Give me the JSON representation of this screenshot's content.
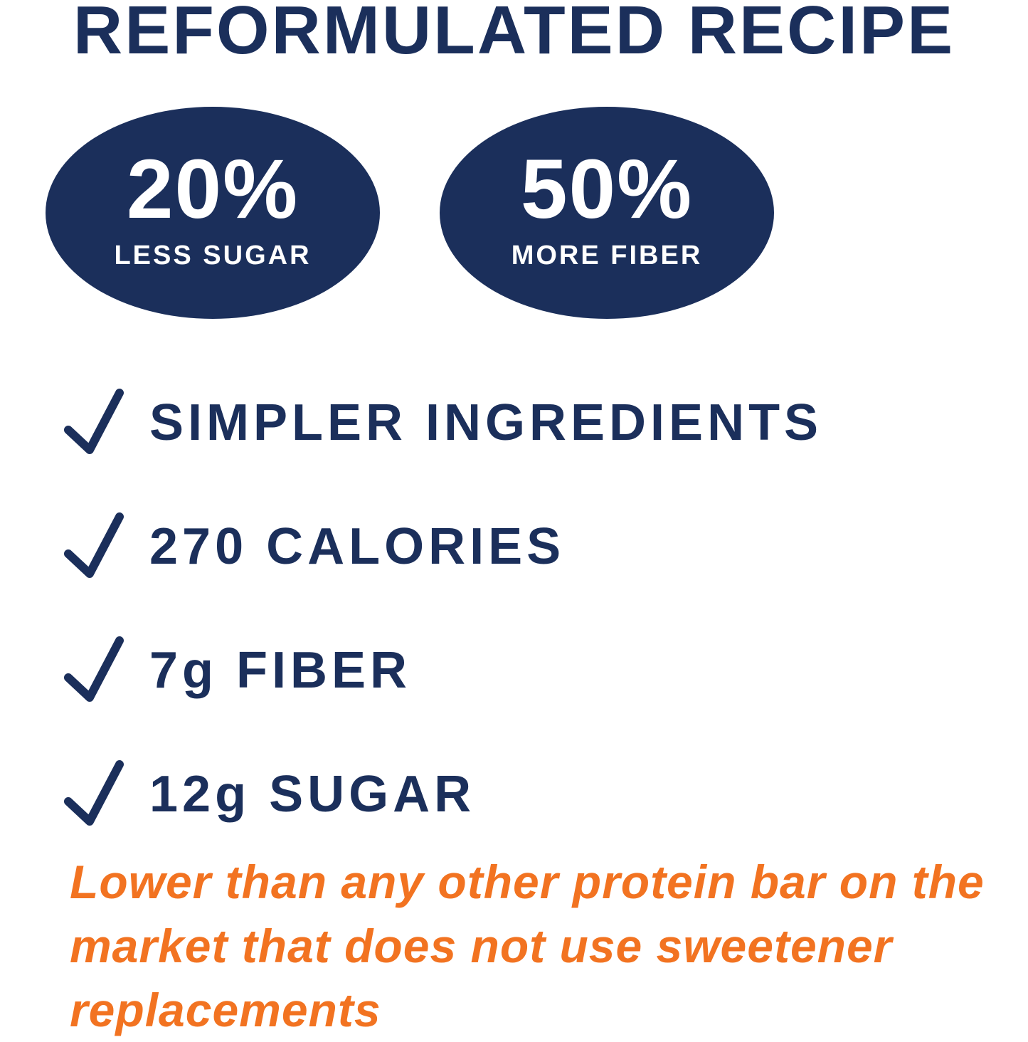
{
  "colors": {
    "navy": "#1b2f5b",
    "orange": "#f27321",
    "background": "#ffffff"
  },
  "headline": "REFORMULATED RECIPE",
  "badges": [
    {
      "big": "20%",
      "small": "LESS SUGAR"
    },
    {
      "big": "50%",
      "small": "MORE FIBER"
    }
  ],
  "benefits": [
    {
      "icon": "check-icon",
      "label": "SIMPLER INGREDIENTS"
    },
    {
      "icon": "check-icon",
      "label": "270 CALORIES"
    },
    {
      "icon": "check-icon",
      "label": "7g FIBER"
    },
    {
      "icon": "check-icon",
      "label": "12g SUGAR"
    }
  ],
  "footnote": "Lower than any other protein bar on the market that does not use sweetener replacements"
}
